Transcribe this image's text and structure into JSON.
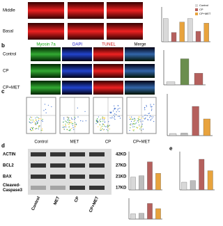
{
  "panel_top": {
    "rows": [
      "Middle",
      "Basal"
    ],
    "chart": {
      "legend": [
        {
          "name": "Control",
          "color": "#d9d9d9"
        },
        {
          "name": "CP",
          "color": "#b5605d"
        },
        {
          "name": "CP+MET",
          "color": "#e8a33d"
        }
      ],
      "values": [
        100,
        40,
        85,
        100,
        45,
        80
      ],
      "colors": [
        "#d9d9d9",
        "#b5605d",
        "#e8a33d",
        "#d9d9d9",
        "#b5605d",
        "#e8a33d"
      ],
      "ylim": [
        0,
        150
      ]
    }
  },
  "panel_b": {
    "letter": "b",
    "columns": [
      "Myosin 7a",
      "DAPI",
      "TUNEL",
      "Merge"
    ],
    "rows": [
      "Control",
      "CP",
      "CP+MET"
    ],
    "chart": {
      "values": [
        5,
        45,
        20
      ],
      "colors": [
        "#d9d9d9",
        "#6b8e4e",
        "#b5605d"
      ],
      "ylim": [
        0,
        60
      ]
    }
  },
  "panel_c": {
    "letter": "c",
    "labels": [
      "Control",
      "MET",
      "CP",
      "CP+MET"
    ],
    "chart": {
      "values": [
        5,
        6,
        70,
        40
      ],
      "colors": [
        "#d9d9d9",
        "#bdbdbd",
        "#b5605d",
        "#e8a33d"
      ],
      "ylim": [
        0,
        100
      ]
    }
  },
  "panel_d": {
    "letter": "d",
    "proteins": [
      "ACTIN",
      "BCL2",
      "BAX",
      "Cleaved-\nCaspase3"
    ],
    "sizes": [
      "42KD",
      "27KD",
      "21KD",
      "17KD"
    ],
    "lanes": [
      "Control",
      "MET",
      "CP",
      "CP+MET"
    ],
    "chart_bax_bcl2": {
      "values": [
        1,
        1.1,
        2.2,
        1.3
      ],
      "colors": [
        "#d9d9d9",
        "#bdbdbd",
        "#b5605d",
        "#e8a33d"
      ],
      "ylim": [
        0,
        3
      ]
    },
    "chart_caspase": {
      "values": [
        1,
        1.1,
        3,
        2
      ],
      "colors": [
        "#d9d9d9",
        "#bdbdbd",
        "#b5605d",
        "#e8a33d"
      ],
      "ylim": [
        0,
        4
      ]
    }
  },
  "panel_e": {
    "letter": "e",
    "chart": {
      "values": [
        1,
        1.2,
        4,
        2.5
      ],
      "colors": [
        "#d9d9d9",
        "#bdbdbd",
        "#b5605d",
        "#e8a33d"
      ],
      "ylim": [
        0,
        5
      ]
    }
  }
}
